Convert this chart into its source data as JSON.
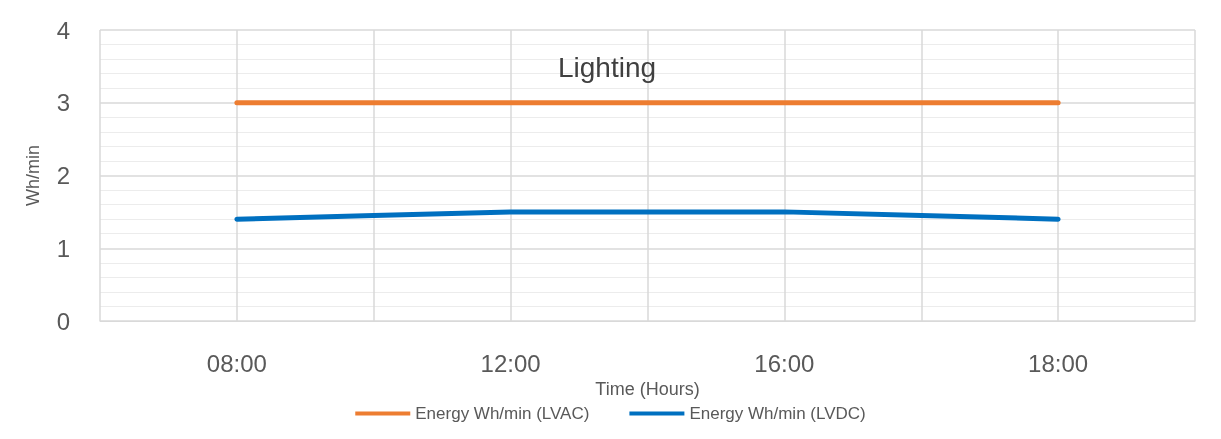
{
  "chart_data": {
    "type": "line",
    "title": "Lighting",
    "xlabel": "Time (Hours)",
    "ylabel": "Wh/min",
    "categories": [
      null,
      "08:00",
      null,
      "12:00",
      null,
      "16:00",
      null,
      "18:00",
      null
    ],
    "series": [
      {
        "name": "Energy Wh/min (LVAC)",
        "color": "#ed7d31",
        "values": [
          null,
          3,
          3,
          3,
          3,
          3,
          3,
          3,
          null
        ]
      },
      {
        "name": "Energy Wh/min (LVDC)",
        "color": "#0070c0",
        "values": [
          null,
          1.4,
          1.45,
          1.5,
          1.5,
          1.5,
          1.45,
          1.4,
          null
        ]
      }
    ],
    "ylim": [
      0,
      4
    ],
    "yticks": [
      0,
      1,
      2,
      3,
      4
    ],
    "grid": true,
    "legend": "bottom",
    "marker": "none",
    "line_style": "solid"
  }
}
